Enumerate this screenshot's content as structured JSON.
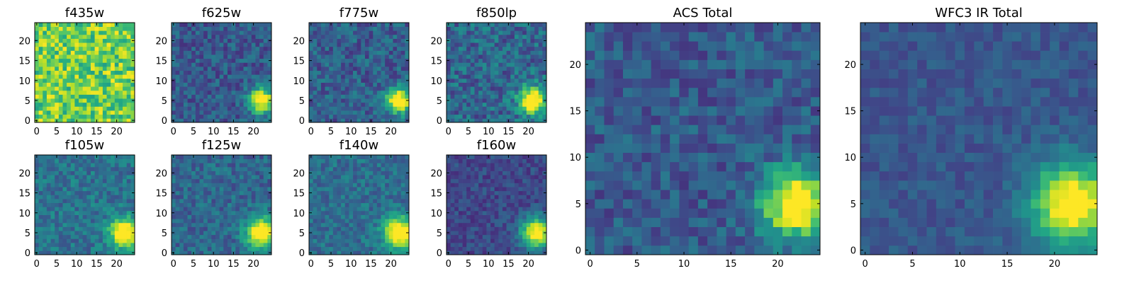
{
  "chart_data": [
    {
      "id": "f435w",
      "type": "heatmap",
      "title": "f435w",
      "xlim": [
        -0.5,
        24.5
      ],
      "ylim": [
        -0.5,
        24.5
      ],
      "xticks": [
        0,
        5,
        10,
        15,
        20
      ],
      "yticks": [
        0,
        5,
        10,
        15,
        20
      ],
      "colormap": "viridis",
      "peak": null,
      "noise_level": 0.78,
      "noise_spread": 0.22
    },
    {
      "id": "f625w",
      "type": "heatmap",
      "title": "f625w",
      "xlim": [
        -0.5,
        24.5
      ],
      "ylim": [
        -0.5,
        24.5
      ],
      "xticks": [
        0,
        5,
        10,
        15,
        20
      ],
      "yticks": [
        0,
        5,
        10,
        15,
        20
      ],
      "colormap": "viridis",
      "peak": {
        "x": 22,
        "y": 5,
        "sigma": 2.2
      },
      "noise_level": 0.28,
      "noise_spread": 0.14
    },
    {
      "id": "f775w",
      "type": "heatmap",
      "title": "f775w",
      "xlim": [
        -0.5,
        24.5
      ],
      "ylim": [
        -0.5,
        24.5
      ],
      "xticks": [
        0,
        5,
        10,
        15,
        20
      ],
      "yticks": [
        0,
        5,
        10,
        15,
        20
      ],
      "colormap": "viridis",
      "peak": {
        "x": 22,
        "y": 5,
        "sigma": 2.2
      },
      "noise_level": 0.3,
      "noise_spread": 0.15
    },
    {
      "id": "f850lp",
      "type": "heatmap",
      "title": "f850lp",
      "xlim": [
        -0.5,
        24.5
      ],
      "ylim": [
        -0.5,
        24.5
      ],
      "xticks": [
        0,
        5,
        10,
        15,
        20
      ],
      "yticks": [
        0,
        5,
        10,
        15,
        20
      ],
      "colormap": "viridis",
      "peak": {
        "x": 21,
        "y": 5,
        "sigma": 2.4
      },
      "noise_level": 0.33,
      "noise_spread": 0.17
    },
    {
      "id": "f105w",
      "type": "heatmap",
      "title": "f105w",
      "xlim": [
        -0.5,
        24.5
      ],
      "ylim": [
        -0.5,
        24.5
      ],
      "xticks": [
        0,
        5,
        10,
        15,
        20
      ],
      "yticks": [
        0,
        5,
        10,
        15,
        20
      ],
      "colormap": "viridis",
      "peak": {
        "x": 22,
        "y": 5,
        "sigma": 2.5
      },
      "noise_level": 0.38,
      "noise_spread": 0.13
    },
    {
      "id": "f125w",
      "type": "heatmap",
      "title": "f125w",
      "xlim": [
        -0.5,
        24.5
      ],
      "ylim": [
        -0.5,
        24.5
      ],
      "xticks": [
        0,
        5,
        10,
        15,
        20
      ],
      "yticks": [
        0,
        5,
        10,
        15,
        20
      ],
      "colormap": "viridis",
      "peak": {
        "x": 22,
        "y": 5,
        "sigma": 2.6
      },
      "noise_level": 0.33,
      "noise_spread": 0.13
    },
    {
      "id": "f140w",
      "type": "heatmap",
      "title": "f140w",
      "xlim": [
        -0.5,
        24.5
      ],
      "ylim": [
        -0.5,
        24.5
      ],
      "xticks": [
        0,
        5,
        10,
        15,
        20
      ],
      "yticks": [
        0,
        5,
        10,
        15,
        20
      ],
      "colormap": "viridis",
      "peak": {
        "x": 22,
        "y": 5,
        "sigma": 2.6
      },
      "noise_level": 0.36,
      "noise_spread": 0.12
    },
    {
      "id": "f160w",
      "type": "heatmap",
      "title": "f160w",
      "xlim": [
        -0.5,
        24.5
      ],
      "ylim": [
        -0.5,
        24.5
      ],
      "xticks": [
        0,
        5,
        10,
        15,
        20
      ],
      "yticks": [
        0,
        5,
        10,
        15,
        20
      ],
      "colormap": "viridis",
      "peak": {
        "x": 22,
        "y": 5,
        "sigma": 2.7
      },
      "noise_level": 0.22,
      "noise_spread": 0.1
    },
    {
      "id": "acs-total",
      "type": "heatmap",
      "title": "ACS Total",
      "xlim": [
        -0.5,
        24.5
      ],
      "ylim": [
        -0.5,
        24.5
      ],
      "xticks": [
        0,
        5,
        10,
        15,
        20
      ],
      "yticks": [
        0,
        5,
        10,
        15,
        20
      ],
      "colormap": "viridis",
      "peak": {
        "x": 22,
        "y": 5,
        "sigma": 2.6
      },
      "noise_level": 0.28,
      "noise_spread": 0.13
    },
    {
      "id": "wfc3-ir-total",
      "type": "heatmap",
      "title": "WFC3 IR Total",
      "xlim": [
        -0.5,
        24.5
      ],
      "ylim": [
        -0.5,
        24.5
      ],
      "xticks": [
        0,
        5,
        10,
        15,
        20
      ],
      "yticks": [
        0,
        5,
        10,
        15,
        20
      ],
      "colormap": "viridis",
      "peak": {
        "x": 22,
        "y": 5,
        "sigma": 3.0
      },
      "noise_level": 0.27,
      "noise_spread": 0.08
    }
  ]
}
